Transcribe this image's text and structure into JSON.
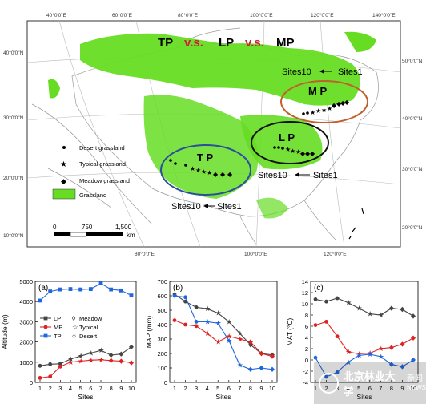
{
  "map": {
    "top_lon_labels": [
      "40°0'0\"E",
      "60°0'0\"E",
      "80°0'0\"E",
      "100°0'0\"E",
      "120°0'0\"E",
      "140°0'0\"E"
    ],
    "left_lat_labels": [
      "40°0'0\"N",
      "30°0'0\"N",
      "20°0'0\"N",
      "10°0'0\"N"
    ],
    "right_lat_labels": [
      "50°0'0\"N",
      "40°0'0\"N",
      "30°0'0\"N",
      "20°0'0\"N"
    ],
    "bottom_lon_labels": [
      "80°0'0\"E",
      "100°0'0\"E",
      "120°0'0\"E"
    ],
    "title_parts": [
      "TP",
      "v.s.",
      "LP",
      "v.s.",
      "MP"
    ],
    "region_labels": {
      "mp": "M P",
      "lp": "L P",
      "tp": "T P"
    },
    "site_annotations": {
      "mp_left": "Sites10",
      "mp_right": "Sites1",
      "lp_left": "Sites10",
      "lp_right": "Sites1",
      "tp_left": "Sites10",
      "tp_right": "Sites1"
    },
    "legend": {
      "desert": "Desert grassland",
      "typical": "Typical grassland",
      "meadow": "Meadow grassland",
      "grassland": "Grassland"
    },
    "scale": {
      "ticks": [
        "0",
        "750",
        "1,500"
      ],
      "unit": "km"
    },
    "colors": {
      "grassland": "#66dd22",
      "mp_ellipse": "#c0602a",
      "lp_ellipse": "#111111",
      "tp_ellipse": "#2a4f9a",
      "title_red": "#cc2233"
    }
  },
  "chart_data": [
    {
      "type": "line",
      "panel": "(a)",
      "ylabel": "Altitude (m)",
      "xlabel": "Sites",
      "x": [
        1,
        2,
        3,
        4,
        5,
        6,
        7,
        8,
        9,
        10
      ],
      "ylim": [
        0,
        5000
      ],
      "yticks": [
        0,
        1000,
        2000,
        3000,
        4000,
        5000
      ],
      "series": [
        {
          "name": "LP",
          "color": "#444444",
          "values": [
            820,
            900,
            920,
            1150,
            1300,
            1450,
            1580,
            1350,
            1400,
            1750
          ]
        },
        {
          "name": "MP",
          "color": "#dd2222",
          "values": [
            220,
            290,
            780,
            1000,
            1050,
            1100,
            1120,
            1080,
            1050,
            970
          ]
        },
        {
          "name": "TP",
          "color": "#2266dd",
          "values": [
            4050,
            4500,
            4600,
            4620,
            4600,
            4620,
            4900,
            4600,
            4550,
            4300
          ]
        }
      ],
      "legend": [
        "LP",
        "MP",
        "TP",
        "Meadow",
        "Typical",
        "Desert"
      ]
    },
    {
      "type": "line",
      "panel": "(b)",
      "ylabel": "MAP (mm)",
      "xlabel": "Sites",
      "x": [
        1,
        2,
        3,
        4,
        5,
        6,
        7,
        8,
        9,
        10
      ],
      "ylim": [
        0,
        700
      ],
      "yticks": [
        0,
        100,
        200,
        300,
        400,
        500,
        600,
        700
      ],
      "series": [
        {
          "name": "LP",
          "color": "#444444",
          "values": [
            610,
            560,
            520,
            510,
            480,
            420,
            340,
            260,
            200,
            190
          ]
        },
        {
          "name": "MP",
          "color": "#dd2222",
          "values": [
            430,
            400,
            390,
            340,
            280,
            320,
            300,
            280,
            200,
            180
          ]
        },
        {
          "name": "TP",
          "color": "#2266dd",
          "values": [
            600,
            590,
            420,
            420,
            410,
            290,
            120,
            90,
            100,
            90
          ]
        }
      ]
    },
    {
      "type": "line",
      "panel": "(c)",
      "ylabel": "MAT (°C)",
      "xlabel": "Sites",
      "x": [
        1,
        2,
        3,
        4,
        5,
        6,
        7,
        8,
        9,
        10
      ],
      "ylim": [
        -4,
        14
      ],
      "yticks": [
        -4,
        -2,
        0,
        2,
        4,
        6,
        8,
        10,
        12,
        14
      ],
      "series": [
        {
          "name": "LP",
          "color": "#444444",
          "values": [
            10.8,
            10.4,
            11.0,
            10.2,
            9.2,
            8.2,
            8.0,
            9.2,
            9.0,
            7.8
          ]
        },
        {
          "name": "MP",
          "color": "#dd2222",
          "values": [
            6.2,
            6.8,
            4.2,
            1.4,
            1.1,
            1.2,
            2.0,
            2.2,
            2.8,
            3.9
          ]
        },
        {
          "name": "TP",
          "color": "#2266dd",
          "values": [
            0.4,
            -3.0,
            -2.2,
            -0.4,
            0.8,
            1.0,
            0.6,
            -0.8,
            -1.2,
            0.0
          ]
        }
      ]
    }
  ],
  "watermark": {
    "text": "北京林业大学",
    "text2": "新闻",
    "text3": "NEWS"
  }
}
